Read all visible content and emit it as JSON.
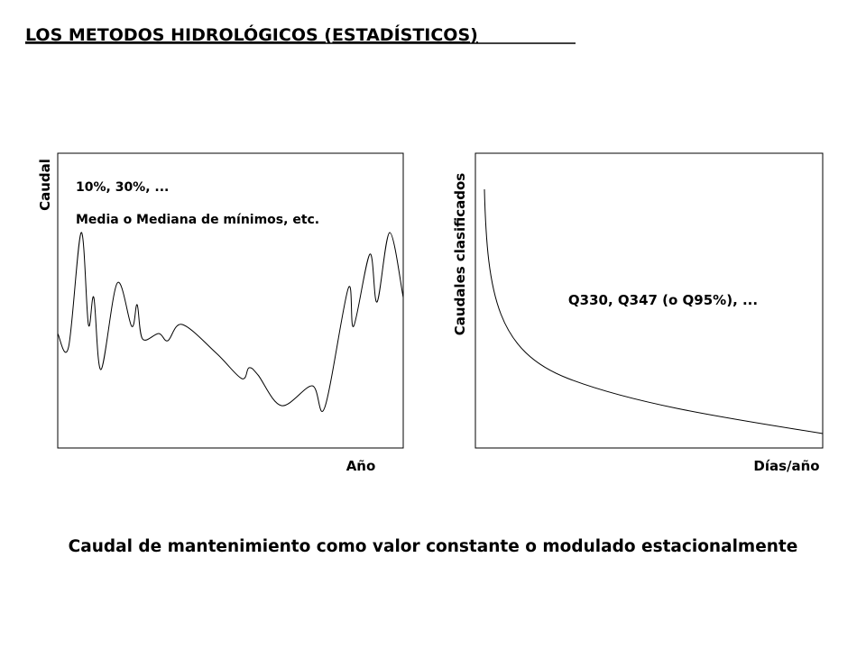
{
  "title": "LOS METODOS HIDROLÓGICOS (ESTADÍSTICOS)",
  "left_panel": {
    "y_label": "Caudal",
    "x_label": "Año",
    "annotations": [
      "10%, 30%, ...",
      "Media o Mediana de mínimos, etc."
    ]
  },
  "right_panel": {
    "y_label": "Caudales clasificados",
    "x_label": "Días/año",
    "annotation": "Q330, Q347 (o Q95%), ..."
  },
  "footer": "Caudal de mantenimiento como valor constante o modulado estacionalmente"
}
